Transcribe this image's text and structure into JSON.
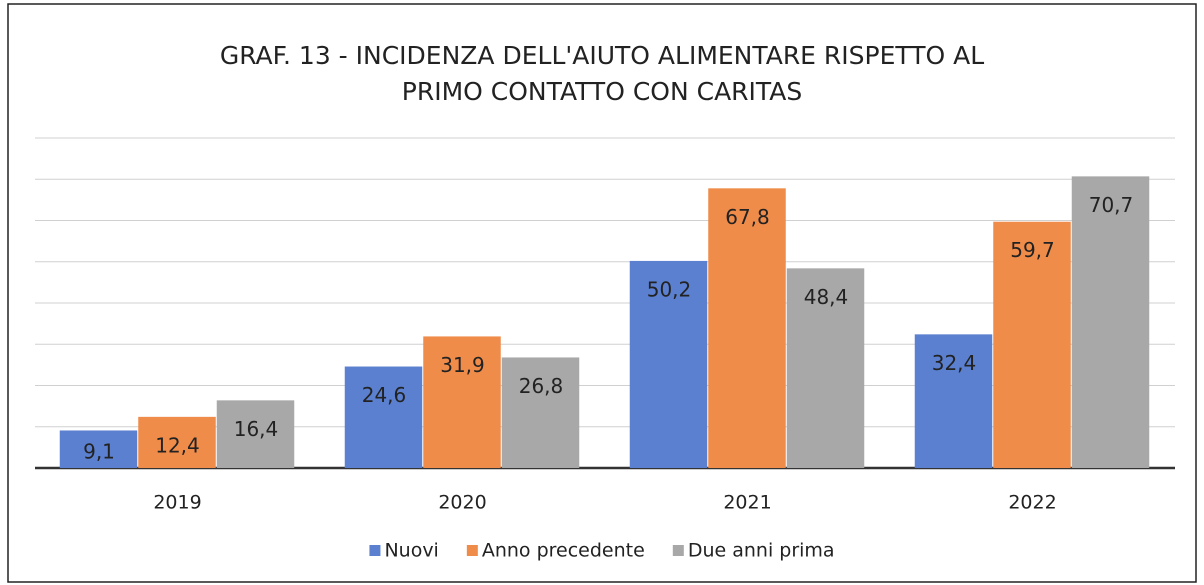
{
  "chart_data": {
    "type": "bar",
    "title": [
      "GRAF. 13 - INCIDENZA DELL'AIUTO ALIMENTARE RISPETTO AL",
      "PRIMO CONTATTO CON CARITAS"
    ],
    "categories": [
      "2019",
      "2020",
      "2021",
      "2022"
    ],
    "series": [
      {
        "name": "Nuovi",
        "color": "#5b80d0",
        "values": [
          9.1,
          24.6,
          50.2,
          32.4
        ],
        "value_labels": [
          "9,1",
          "24,6",
          "50,2",
          "32,4"
        ]
      },
      {
        "name": "Anno precedente",
        "color": "#ef8c4a",
        "values": [
          12.4,
          31.9,
          67.8,
          59.7
        ],
        "value_labels": [
          "12,4",
          "31,9",
          "67,8",
          "59,7"
        ]
      },
      {
        "name": "Due anni prima",
        "color": "#a8a8a8",
        "values": [
          16.4,
          26.8,
          48.4,
          70.7
        ],
        "value_labels": [
          "16,4",
          "26,8",
          "48,4",
          "70,7"
        ]
      }
    ],
    "ylim": [
      0,
      80
    ],
    "yticks": [
      0,
      10,
      20,
      30,
      40,
      50,
      60,
      70,
      80
    ],
    "grid": true,
    "legend": "bottom"
  }
}
